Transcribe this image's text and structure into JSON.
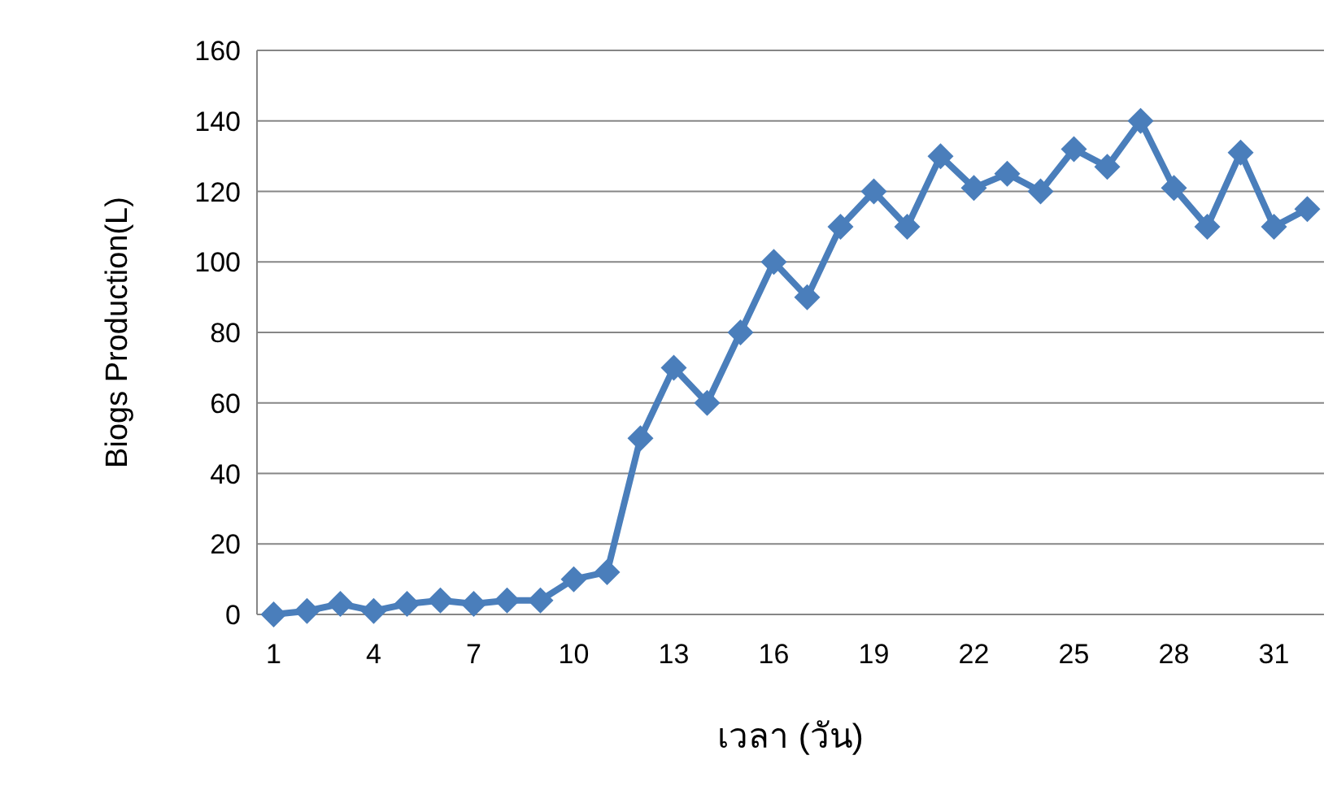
{
  "chart_data": {
    "type": "line",
    "xlabel": "เวลา (วัน)",
    "ylabel": "Biogs Production(L)",
    "categories": [
      "1",
      null,
      null,
      "4",
      null,
      null,
      "7",
      null,
      null,
      "10",
      null,
      null,
      "13",
      null,
      null,
      "16",
      null,
      null,
      "19",
      null,
      null,
      "22",
      null,
      null,
      "25",
      null,
      null,
      "28",
      null,
      null,
      "31",
      null
    ],
    "series": [
      {
        "color": "#4a7ebb",
        "values": [
          0,
          1,
          3,
          1,
          3,
          4,
          3,
          4,
          4,
          10,
          12,
          50,
          70,
          60,
          80,
          100,
          90,
          110,
          120,
          110,
          130,
          121,
          125,
          120,
          132,
          127,
          140,
          121,
          110,
          131,
          110,
          115
        ]
      }
    ],
    "ylim": [
      0,
      160
    ],
    "yticks": [
      0,
      20,
      40,
      60,
      80,
      100,
      120,
      140,
      160
    ],
    "grid": "y",
    "marker": "diamond",
    "line_style": "solid"
  }
}
